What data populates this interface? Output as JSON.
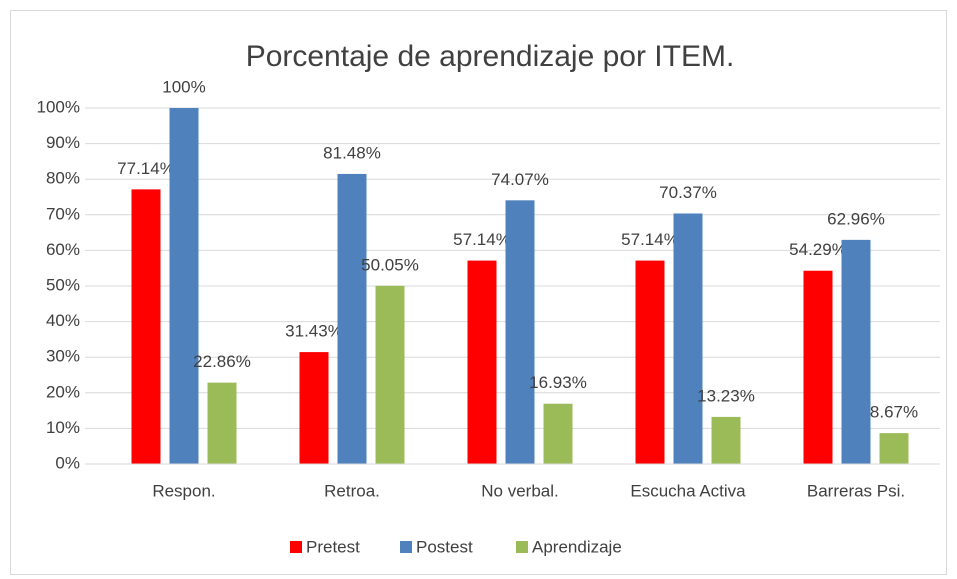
{
  "chart_data": {
    "type": "bar",
    "title": "Porcentaje de aprendizaje por ITEM.",
    "categories": [
      "Respon.",
      "Retroa.",
      "No verbal.",
      "Escucha Activa",
      "Barreras Psi."
    ],
    "series": [
      {
        "name": "Pretest",
        "color": "#ff0000",
        "values": [
          77.14,
          31.43,
          57.14,
          57.14,
          54.29
        ],
        "value_labels": [
          "77.14%",
          "31.43%",
          "57.14%",
          "57.14%",
          "54.29%"
        ]
      },
      {
        "name": "Postest",
        "color": "#4f81bd",
        "values": [
          100,
          81.48,
          74.07,
          70.37,
          62.96
        ],
        "value_labels": [
          "100%",
          "81.48%",
          "74.07%",
          "70.37%",
          "62.96%"
        ]
      },
      {
        "name": "Aprendizaje",
        "color": "#9bbb59",
        "values": [
          22.86,
          50.05,
          16.93,
          13.23,
          8.67
        ],
        "value_labels": [
          "22.86%",
          "50.05%",
          "16.93%",
          "13.23%",
          "8.67%"
        ]
      }
    ],
    "ylim": [
      0,
      100
    ],
    "yticks": [
      {
        "value": 0,
        "label": "0%"
      },
      {
        "value": 10,
        "label": "10%"
      },
      {
        "value": 20,
        "label": "20%"
      },
      {
        "value": 30,
        "label": "30%"
      },
      {
        "value": 40,
        "label": "40%"
      },
      {
        "value": 50,
        "label": "50%"
      },
      {
        "value": 60,
        "label": "60%"
      },
      {
        "value": 70,
        "label": "70%"
      },
      {
        "value": 80,
        "label": "80%"
      },
      {
        "value": 90,
        "label": "90%"
      },
      {
        "value": 100,
        "label": "100%"
      }
    ],
    "grid": true,
    "legend": "bottom"
  }
}
